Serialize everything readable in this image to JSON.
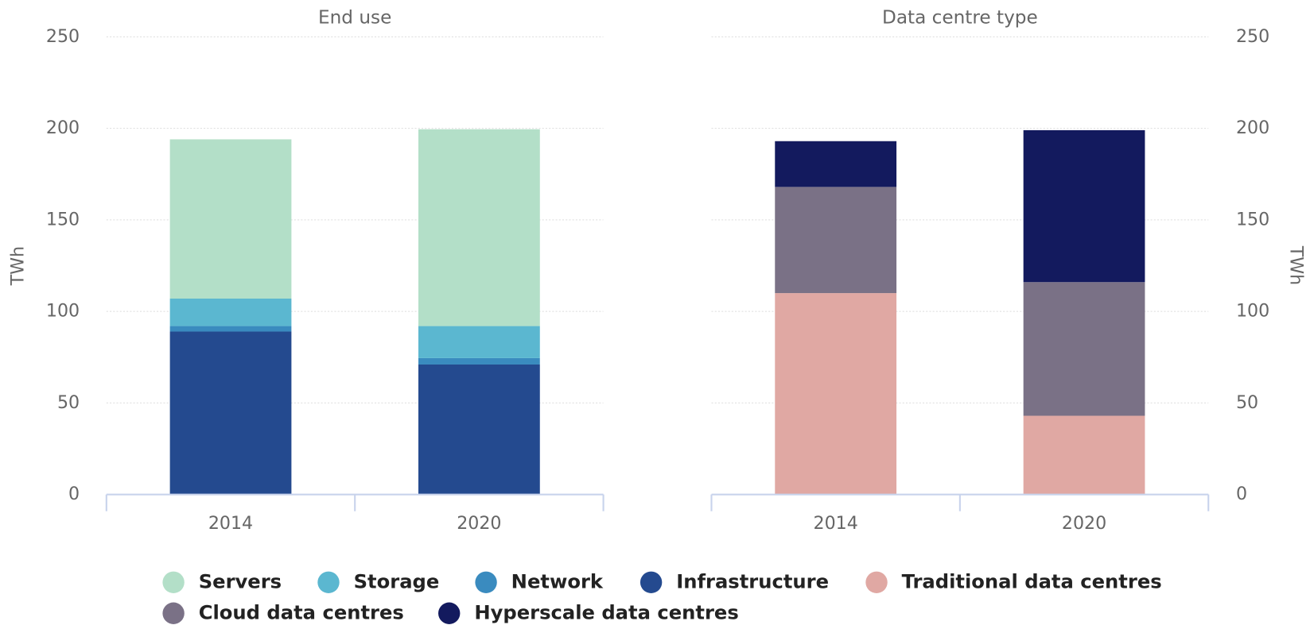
{
  "chart_data": [
    {
      "type": "stacked_bar",
      "title": "End use",
      "y_label": "TWh",
      "categories": [
        "2014",
        "2020"
      ],
      "series": [
        {
          "name": "Infrastructure",
          "color": "#244a8f",
          "values": [
            89,
            71
          ]
        },
        {
          "name": "Network",
          "color": "#3a8bbf",
          "values": [
            3,
            3.5
          ]
        },
        {
          "name": "Storage",
          "color": "#5bb7d0",
          "values": [
            15,
            17.5
          ]
        },
        {
          "name": "Servers",
          "color": "#b3dfc8",
          "values": [
            87,
            107.5
          ]
        }
      ],
      "ylim": [
        0,
        250
      ],
      "yticks": [
        0,
        50,
        100,
        150,
        200,
        250
      ],
      "grid": true,
      "axis_side": "left"
    },
    {
      "type": "stacked_bar",
      "title": "Data centre type",
      "y_label": "TWh",
      "categories": [
        "2014",
        "2020"
      ],
      "series": [
        {
          "name": "Traditional data centres",
          "color": "#e0a8a3",
          "values": [
            110,
            43
          ]
        },
        {
          "name": "Cloud data centres",
          "color": "#7a7186",
          "values": [
            58,
            73
          ]
        },
        {
          "name": "Hyperscale data centres",
          "color": "#131a5e",
          "values": [
            25,
            83
          ]
        }
      ],
      "ylim": [
        0,
        250
      ],
      "yticks": [
        0,
        50,
        100,
        150,
        200,
        250
      ],
      "grid": true,
      "axis_side": "right"
    }
  ]
}
